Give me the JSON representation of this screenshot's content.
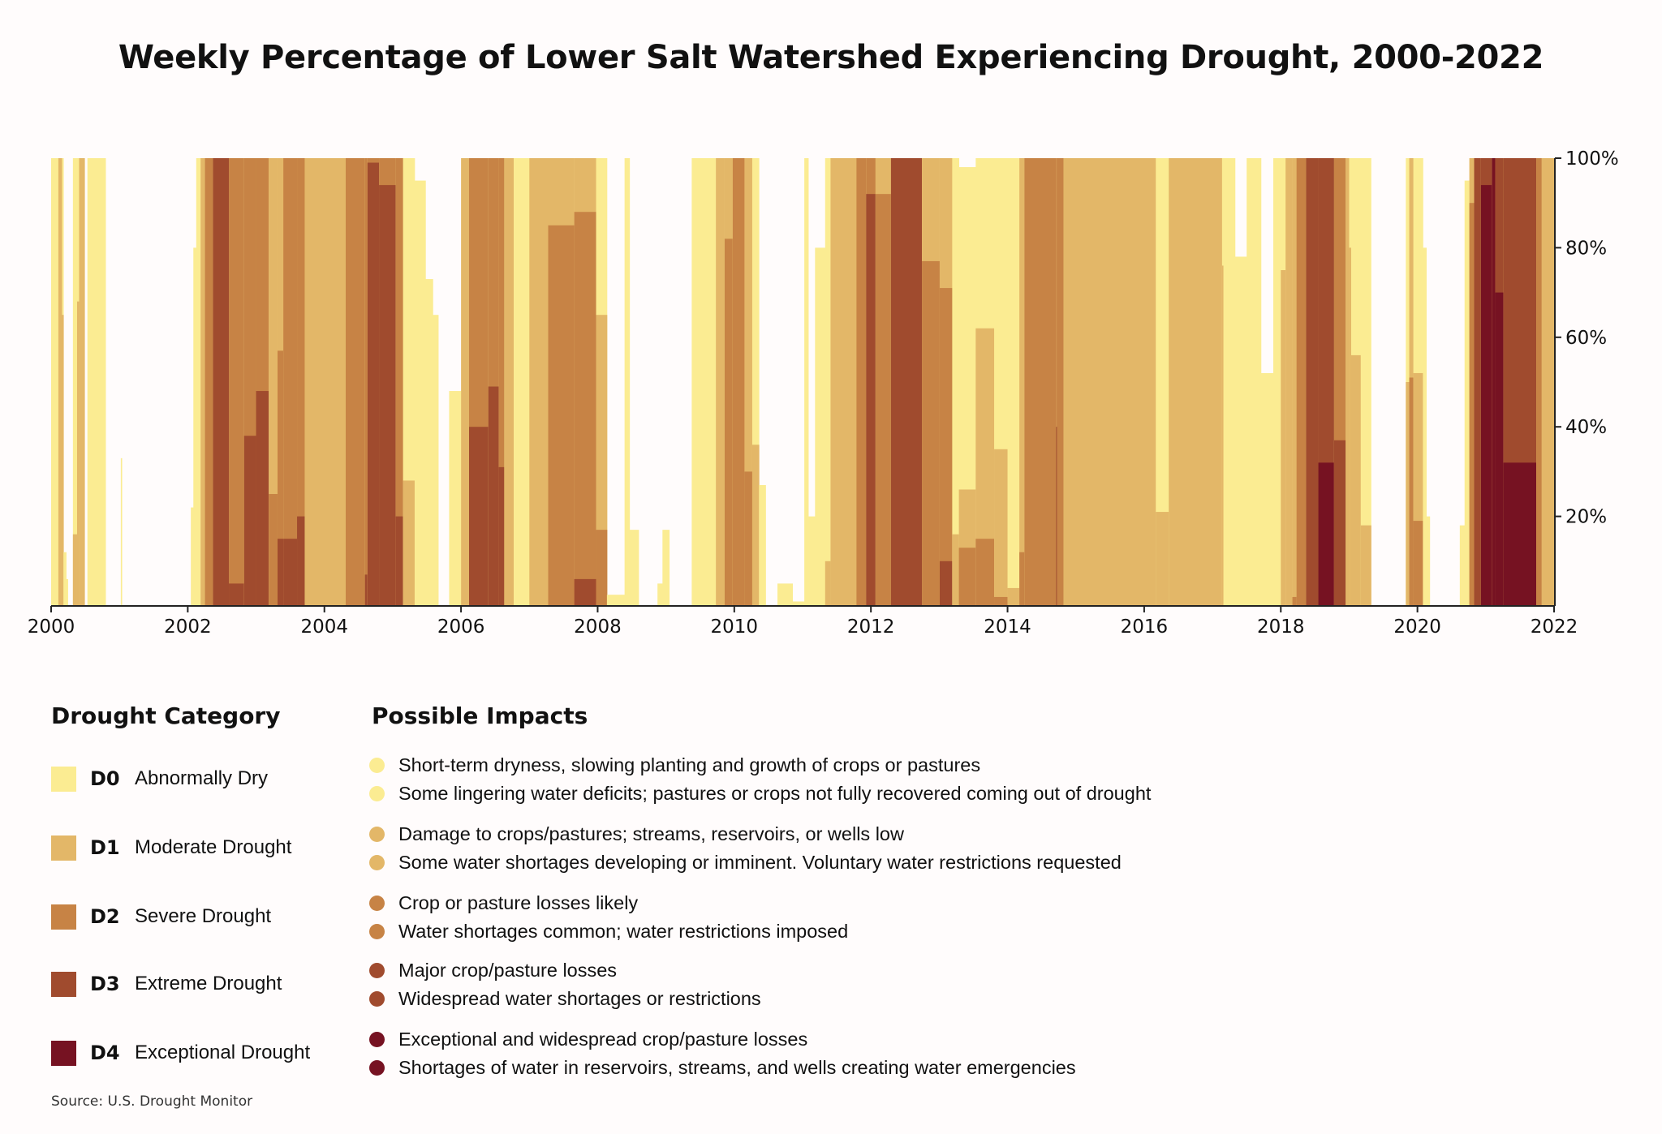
{
  "chart_data": {
    "type": "area",
    "title": "Weekly Percentage of Lower Salt Watershed Experiencing Drought, 2000-2022",
    "xlim": [
      2000,
      2022
    ],
    "ylim": [
      0,
      100
    ],
    "x_ticks": [
      "2000",
      "2002",
      "2004",
      "2006",
      "2008",
      "2010",
      "2012",
      "2014",
      "2016",
      "2018",
      "2020",
      "2022"
    ],
    "y_ticks": [
      "20%",
      "40%",
      "60%",
      "80%",
      "100%"
    ],
    "y_axis_side": "right",
    "grid": false,
    "series_names": [
      "D0",
      "D1",
      "D2",
      "D3",
      "D4"
    ],
    "colors": {
      "D0": "#fbec92",
      "D1": "#e3b768",
      "D2": "#c78345",
      "D3": "#a04b2e",
      "D4": "#761222"
    },
    "value_note_columns": [
      "year",
      "D0-D4",
      "D1-D4",
      "D2-D4",
      "D3-D4",
      "D4"
    ],
    "weeks": [
      [
        2000.0,
        100,
        0,
        0,
        0,
        0
      ],
      [
        2000.106,
        100,
        100,
        0,
        0,
        0
      ],
      [
        2000.16,
        100,
        65,
        0,
        0,
        0
      ],
      [
        2000.18,
        12,
        0,
        0,
        0,
        0
      ],
      [
        2000.22,
        6,
        0,
        0,
        0,
        0
      ],
      [
        2000.244,
        0,
        0,
        0,
        0,
        0
      ],
      [
        2000.319,
        100,
        16,
        0,
        0,
        0
      ],
      [
        2000.38,
        100,
        68,
        0,
        0,
        0
      ],
      [
        2000.409,
        100,
        100,
        0,
        0,
        0
      ],
      [
        2000.489,
        0,
        0,
        0,
        0,
        0
      ],
      [
        2000.531,
        100,
        0,
        0,
        0,
        0
      ],
      [
        2000.797,
        0,
        0,
        0,
        0,
        0
      ],
      [
        2001.02,
        33,
        0,
        0,
        0,
        0
      ],
      [
        2001.035,
        0,
        0,
        0,
        0,
        0
      ],
      [
        2002.045,
        22,
        0,
        0,
        0,
        0
      ],
      [
        2002.082,
        80,
        0,
        0,
        0,
        0
      ],
      [
        2002.124,
        100,
        0,
        0,
        0,
        0
      ],
      [
        2002.188,
        100,
        100,
        0,
        0,
        0
      ],
      [
        2002.252,
        100,
        100,
        100,
        0,
        0
      ],
      [
        2002.369,
        100,
        100,
        100,
        100,
        0
      ],
      [
        2002.602,
        100,
        100,
        100,
        5,
        0
      ],
      [
        2002.825,
        100,
        100,
        100,
        38,
        0
      ],
      [
        2003.0,
        100,
        100,
        100,
        48,
        0
      ],
      [
        2003.186,
        100,
        100,
        25,
        0,
        0
      ],
      [
        2003.314,
        100,
        100,
        57,
        15,
        0
      ],
      [
        2003.399,
        100,
        100,
        100,
        15,
        0
      ],
      [
        2003.6,
        100,
        100,
        100,
        20,
        0
      ],
      [
        2003.712,
        100,
        100,
        0,
        0,
        0
      ],
      [
        2004.312,
        100,
        100,
        100,
        0,
        0
      ],
      [
        2004.594,
        100,
        100,
        100,
        7,
        0
      ],
      [
        2004.631,
        100,
        100,
        100,
        99,
        0
      ],
      [
        2004.8,
        100,
        100,
        100,
        94,
        0
      ],
      [
        2005.045,
        100,
        100,
        100,
        20,
        0
      ],
      [
        2005.151,
        100,
        28,
        0,
        0,
        0
      ],
      [
        2005.321,
        95,
        0,
        0,
        0,
        0
      ],
      [
        2005.48,
        73,
        0,
        0,
        0,
        0
      ],
      [
        2005.587,
        65,
        0,
        0,
        0,
        0
      ],
      [
        2005.667,
        0,
        0,
        0,
        0,
        0
      ],
      [
        2005.826,
        48,
        0,
        0,
        0,
        0
      ],
      [
        2006.001,
        100,
        100,
        0,
        0,
        0
      ],
      [
        2006.118,
        100,
        100,
        100,
        40,
        0
      ],
      [
        2006.4,
        100,
        100,
        100,
        49,
        0
      ],
      [
        2006.553,
        100,
        100,
        100,
        31,
        0
      ],
      [
        2006.633,
        100,
        100,
        0,
        0,
        0
      ],
      [
        2006.771,
        100,
        0,
        0,
        0,
        0
      ],
      [
        2007.0,
        100,
        100,
        0,
        0,
        0
      ],
      [
        2007.276,
        100,
        100,
        85,
        0,
        0
      ],
      [
        2007.658,
        100,
        100,
        88,
        6,
        0
      ],
      [
        2007.977,
        100,
        65,
        17,
        0,
        0
      ],
      [
        2008.136,
        2.5,
        0,
        0,
        0,
        0
      ],
      [
        2008.394,
        100,
        0,
        0,
        0,
        0
      ],
      [
        2008.467,
        17,
        0,
        0,
        0,
        0
      ],
      [
        2008.6,
        0,
        0,
        0,
        0,
        0
      ],
      [
        2008.876,
        5,
        0,
        0,
        0,
        0
      ],
      [
        2008.949,
        17,
        0,
        0,
        0,
        0
      ],
      [
        2009.048,
        0,
        0,
        0,
        0,
        0
      ],
      [
        2009.377,
        100,
        0,
        0,
        0,
        0
      ],
      [
        2009.731,
        100,
        100,
        0,
        0,
        0
      ],
      [
        2009.859,
        100,
        100,
        82,
        0,
        0
      ],
      [
        2009.977,
        100,
        100,
        100,
        0,
        0
      ],
      [
        2010.15,
        100,
        100,
        30,
        0,
        0
      ],
      [
        2010.263,
        100,
        36,
        0,
        0,
        0
      ],
      [
        2010.361,
        27,
        0,
        0,
        0,
        0
      ],
      [
        2010.459,
        0,
        0,
        0,
        0,
        0
      ],
      [
        2010.632,
        5,
        0,
        0,
        0,
        0
      ],
      [
        2010.853,
        1,
        0,
        0,
        0,
        0
      ],
      [
        2011.025,
        100,
        0,
        0,
        0,
        0
      ],
      [
        2011.084,
        20,
        0,
        0,
        0,
        0
      ],
      [
        2011.182,
        80,
        0,
        0,
        0,
        0
      ],
      [
        2011.33,
        100,
        10,
        0,
        0,
        0
      ],
      [
        2011.409,
        100,
        100,
        0,
        0,
        0
      ],
      [
        2011.788,
        100,
        100,
        100,
        0,
        0
      ],
      [
        2011.93,
        100,
        100,
        100,
        92,
        0
      ],
      [
        2012.068,
        100,
        100,
        92,
        0,
        0
      ],
      [
        2012.294,
        100,
        100,
        100,
        100,
        0
      ],
      [
        2012.747,
        100,
        100,
        77,
        0,
        0
      ],
      [
        2013.007,
        100,
        100,
        71,
        10,
        0
      ],
      [
        2013.19,
        100,
        16,
        0,
        0,
        0
      ],
      [
        2013.288,
        98,
        26,
        13,
        0,
        0
      ],
      [
        2013.534,
        100,
        62,
        15,
        0,
        0
      ],
      [
        2013.804,
        100,
        35,
        2,
        0,
        0
      ],
      [
        2014.0,
        100,
        4,
        0,
        0,
        0
      ],
      [
        2014.173,
        100,
        100,
        12,
        0,
        0
      ],
      [
        2014.247,
        100,
        100,
        100,
        0,
        0
      ],
      [
        2014.71,
        100,
        100,
        100,
        40,
        0
      ],
      [
        2014.725,
        100,
        100,
        100,
        0,
        0
      ],
      [
        2014.82,
        100,
        100,
        0,
        0,
        0
      ],
      [
        2016.17,
        100,
        21,
        0,
        0,
        0
      ],
      [
        2016.36,
        100,
        100,
        0,
        0,
        0
      ],
      [
        2017.14,
        100,
        76,
        0,
        0,
        0
      ],
      [
        2017.16,
        100,
        0,
        0,
        0,
        0
      ],
      [
        2017.33,
        78,
        0,
        0,
        0,
        0
      ],
      [
        2017.5,
        100,
        0,
        0,
        0,
        0
      ],
      [
        2017.71,
        52,
        0,
        0,
        0,
        0
      ],
      [
        2017.89,
        100,
        0,
        0,
        0,
        0
      ],
      [
        2018.0,
        100,
        75,
        0,
        0,
        0
      ],
      [
        2018.07,
        100,
        100,
        0,
        0,
        0
      ],
      [
        2018.17,
        100,
        100,
        2,
        0,
        0
      ],
      [
        2018.23,
        100,
        100,
        100,
        0,
        0
      ],
      [
        2018.37,
        100,
        100,
        100,
        100,
        0
      ],
      [
        2018.55,
        100,
        100,
        100,
        100,
        32
      ],
      [
        2018.78,
        100,
        100,
        100,
        37,
        0
      ],
      [
        2018.95,
        100,
        100,
        0,
        0,
        0
      ],
      [
        2019.0,
        100,
        80,
        0,
        0,
        0
      ],
      [
        2019.03,
        100,
        56,
        0,
        0,
        0
      ],
      [
        2019.17,
        100,
        18,
        0,
        0,
        0
      ],
      [
        2019.32,
        0,
        0,
        0,
        0,
        0
      ],
      [
        2019.83,
        100,
        50,
        0,
        0,
        0
      ],
      [
        2019.88,
        100,
        100,
        51,
        0,
        0
      ],
      [
        2019.94,
        100,
        52,
        19,
        0,
        0
      ],
      [
        2020.08,
        80,
        0,
        0,
        0,
        0
      ],
      [
        2020.13,
        20,
        0,
        0,
        0,
        0
      ],
      [
        2020.18,
        0,
        0,
        0,
        0,
        0
      ],
      [
        2020.62,
        18,
        0,
        0,
        0,
        0
      ],
      [
        2020.69,
        95,
        0,
        0,
        0,
        0
      ],
      [
        2020.76,
        100,
        100,
        90,
        0,
        0
      ],
      [
        2020.83,
        100,
        100,
        100,
        100,
        0
      ],
      [
        2020.93,
        100,
        100,
        100,
        100,
        94
      ],
      [
        2021.09,
        100,
        100,
        100,
        100,
        100
      ],
      [
        2021.14,
        100,
        100,
        100,
        100,
        70
      ],
      [
        2021.26,
        100,
        100,
        100,
        100,
        32
      ],
      [
        2021.74,
        100,
        100,
        100,
        0,
        0
      ],
      [
        2021.82,
        100,
        100,
        0,
        0,
        0
      ]
    ]
  },
  "legend": {
    "category_title": "Drought Category",
    "impacts_title": "Possible Impacts",
    "categories": [
      {
        "code": "D0",
        "name": "Abnormally Dry",
        "color": "#fbec92"
      },
      {
        "code": "D1",
        "name": "Moderate Drought",
        "color": "#e3b768"
      },
      {
        "code": "D2",
        "name": "Severe Drought",
        "color": "#c78345"
      },
      {
        "code": "D3",
        "name": "Extreme Drought",
        "color": "#a04b2e"
      },
      {
        "code": "D4",
        "name": "Exceptional Drought",
        "color": "#761222"
      }
    ],
    "impacts": [
      [
        "Short-term dryness, slowing planting and growth of crops or pastures",
        "Some lingering water deficits; pastures or crops not fully recovered coming out of drought"
      ],
      [
        "Damage to crops/pastures; streams, reservoirs, or wells low",
        "Some water shortages developing or imminent. Voluntary water restrictions requested"
      ],
      [
        "Crop or pasture losses likely",
        "Water shortages common; water restrictions imposed"
      ],
      [
        "Major crop/pasture losses",
        "Widespread water shortages or restrictions"
      ],
      [
        "Exceptional and widespread crop/pasture losses",
        "Shortages of water in reservoirs, streams, and wells creating water emergencies"
      ]
    ]
  },
  "source": "Source: U.S. Drought Monitor"
}
